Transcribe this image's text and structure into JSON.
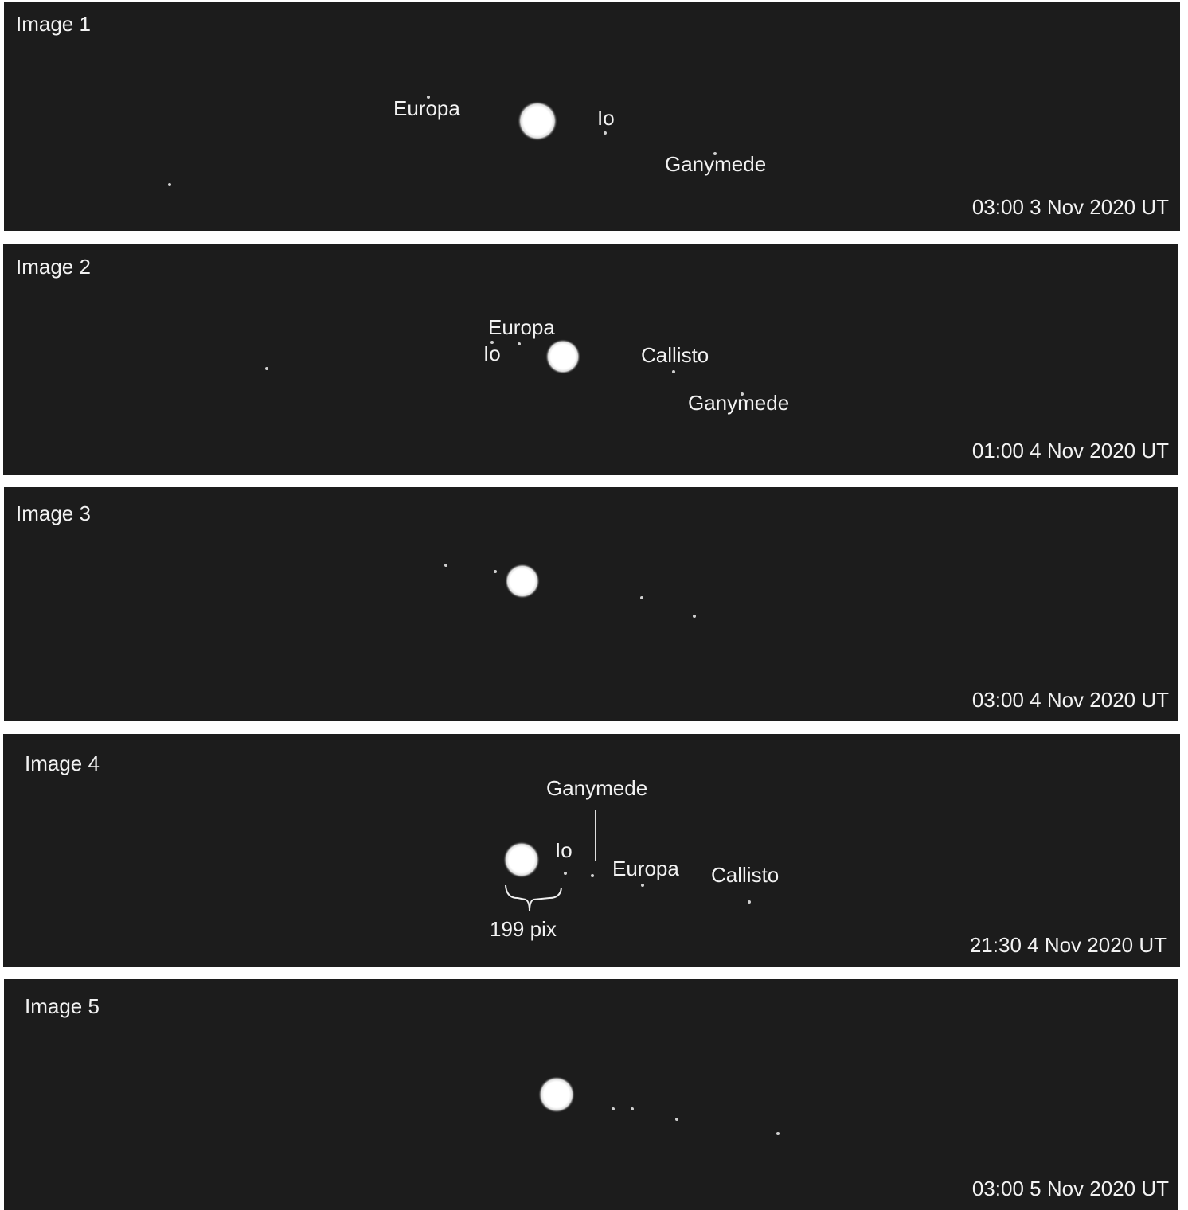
{
  "panels": [
    {
      "title": "Image 1",
      "timestamp": "03:00 3 Nov 2020 UT",
      "labels": [
        "Europa",
        "Io",
        "Ganymede"
      ]
    },
    {
      "title": "Image 2",
      "timestamp": "01:00 4 Nov 2020 UT",
      "labels": [
        "Europa",
        "Io",
        "Callisto",
        "Ganymede"
      ]
    },
    {
      "title": "Image 3",
      "timestamp": "03:00 4 Nov 2020 UT"
    },
    {
      "title": "Image 4",
      "timestamp": "21:30 4 Nov 2020 UT",
      "labels": [
        "Ganymede",
        "Io",
        "Europa",
        "Callisto",
        "199 pix"
      ]
    },
    {
      "title": "Image 5",
      "timestamp": "03:00 5 Nov 2020 UT"
    }
  ]
}
